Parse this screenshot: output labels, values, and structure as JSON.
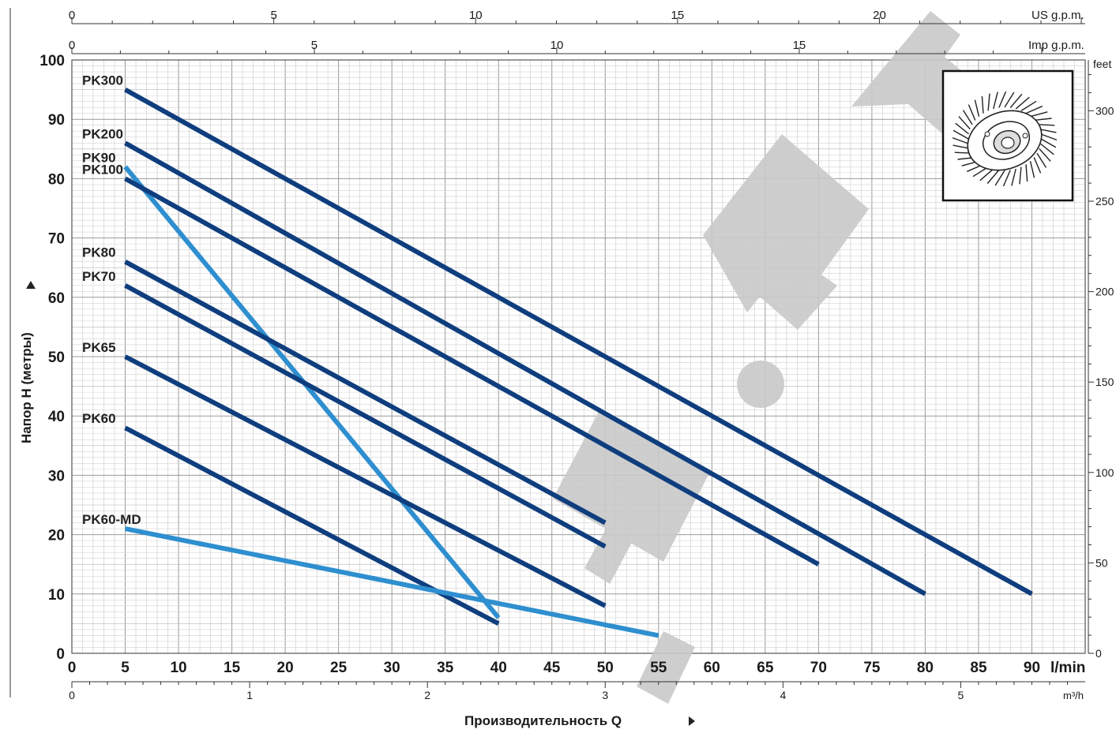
{
  "chart_data": {
    "type": "line",
    "title": "",
    "xlabel": "Производительность Q",
    "ylabel": "Напор H (метры)",
    "x_unit": "l/min",
    "xlim": [
      0,
      95
    ],
    "ylim": [
      0,
      100
    ],
    "x_ticks": [
      0,
      5,
      10,
      15,
      20,
      25,
      30,
      35,
      40,
      45,
      50,
      55,
      60,
      65,
      70,
      75,
      80,
      85,
      90
    ],
    "y_ticks": [
      0,
      10,
      20,
      30,
      40,
      50,
      60,
      70,
      80,
      90,
      100
    ],
    "grid": true,
    "secondary_axes": {
      "top_us_gpm": {
        "label": "US g.p.m.",
        "ticks": [
          "0",
          "5",
          "10",
          "15",
          "20"
        ],
        "values": [
          0,
          5,
          10,
          15,
          20
        ]
      },
      "top_imp_gpm": {
        "label": "Imp g.p.m.",
        "ticks": [
          "0",
          "5",
          "10",
          "15"
        ],
        "values": [
          0,
          5,
          10,
          15
        ]
      },
      "right_feet": {
        "label": "feet",
        "ticks": [
          "0",
          "50",
          "100",
          "150",
          "200",
          "250",
          "300"
        ],
        "values": [
          0,
          50,
          100,
          150,
          200,
          250,
          300
        ]
      },
      "bottom_m3h": {
        "label": "m³/h",
        "ticks": [
          "0",
          "1",
          "2",
          "3",
          "4",
          "5"
        ],
        "values": [
          0,
          1,
          2,
          3,
          4,
          5
        ]
      }
    },
    "series": [
      {
        "name": "PK300",
        "color": "#0f3e7e",
        "x": [
          5,
          90
        ],
        "y": [
          95,
          10
        ]
      },
      {
        "name": "PK200",
        "color": "#0f3e7e",
        "x": [
          5,
          80
        ],
        "y": [
          86,
          10
        ]
      },
      {
        "name": "PK90",
        "color": "#2e8fd0",
        "x": [
          5,
          40
        ],
        "y": [
          82,
          6
        ]
      },
      {
        "name": "PK100",
        "color": "#0f3e7e",
        "x": [
          5,
          70
        ],
        "y": [
          80,
          15
        ]
      },
      {
        "name": "PK80",
        "color": "#0f3e7e",
        "x": [
          5,
          50
        ],
        "y": [
          66,
          22
        ]
      },
      {
        "name": "PK70",
        "color": "#0f3e7e",
        "x": [
          5,
          50
        ],
        "y": [
          62,
          18
        ]
      },
      {
        "name": "PK65",
        "color": "#0f3e7e",
        "x": [
          5,
          50
        ],
        "y": [
          50,
          8
        ]
      },
      {
        "name": "PK60",
        "color": "#0f3e7e",
        "x": [
          5,
          40
        ],
        "y": [
          38,
          5
        ]
      },
      {
        "name": "PK60-MD",
        "color": "#2e8fd0",
        "x": [
          5,
          55
        ],
        "y": [
          21,
          3
        ]
      }
    ]
  },
  "watermark": {
    "icon": "watermark-letters-icon",
    "color": "#cccccc"
  },
  "inset": {
    "icon": "impeller-icon"
  }
}
